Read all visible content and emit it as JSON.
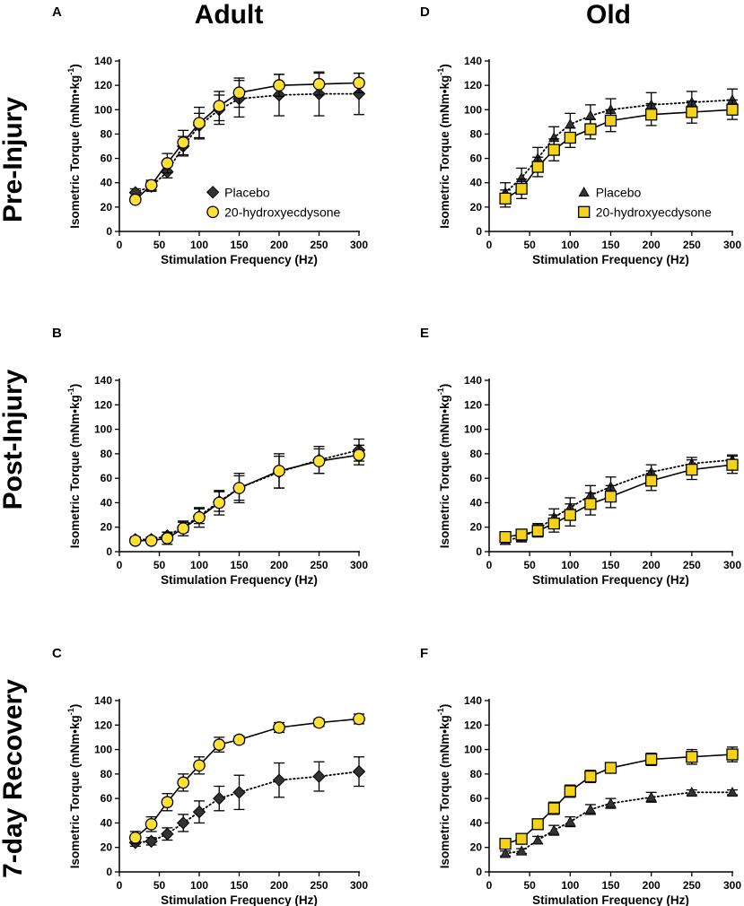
{
  "figure": {
    "columns": [
      "Adult",
      "Old"
    ],
    "rows": [
      "Pre-Injury",
      "Post-Injury",
      "7-day Recovery"
    ],
    "ylabel_prefix": "Isometric Torque (mNm•kg",
    "ylabel_exponent": "-1",
    "ylabel_suffix": ")"
  },
  "colors": {
    "placebo": "#333333",
    "treatment": "#FFE033",
    "treatment_old": "#F5D21A",
    "stroke": "#000000"
  },
  "chart_data": [
    {
      "panel": "A",
      "type": "line",
      "column": "Adult",
      "row": "Pre-Injury",
      "title": "",
      "xlabel": "Stimulation Frequency (Hz)",
      "ylabel": "Isometric Torque (mNm•kg-1)",
      "x": [
        20,
        40,
        60,
        80,
        100,
        125,
        150,
        200,
        250,
        300
      ],
      "xlim": [
        0,
        300
      ],
      "xticks": [
        0,
        50,
        100,
        150,
        200,
        250,
        300
      ],
      "ylim": [
        0,
        140
      ],
      "yticks": [
        0,
        20,
        40,
        60,
        80,
        100,
        120,
        140
      ],
      "legend": true,
      "legend_placement": "lower-right",
      "series": [
        {
          "name": "Placebo",
          "marker": "diamond",
          "line": "dotted",
          "values": [
            32,
            37,
            49,
            70,
            87,
            100,
            109,
            112,
            113,
            113
          ],
          "errors": [
            3,
            4,
            5,
            8,
            10,
            12,
            15,
            17,
            18,
            17
          ]
        },
        {
          "name": "20-hydroxyecdysone",
          "marker": "circle",
          "line": "solid",
          "values": [
            26,
            38,
            56,
            73,
            89,
            103,
            114,
            120,
            121,
            122
          ],
          "errors": [
            2,
            4,
            8,
            10,
            13,
            12,
            12,
            9,
            9,
            8
          ]
        }
      ]
    },
    {
      "panel": "D",
      "type": "line",
      "column": "Old",
      "row": "Pre-Injury",
      "title": "",
      "xlabel": "Stimulation Frequency (Hz)",
      "ylabel": "Isometric Torque (mNm•kg-1)",
      "x": [
        20,
        40,
        60,
        80,
        100,
        125,
        150,
        200,
        250,
        300
      ],
      "xlim": [
        0,
        300
      ],
      "xticks": [
        0,
        50,
        100,
        150,
        200,
        250,
        300
      ],
      "ylim": [
        0,
        140
      ],
      "yticks": [
        0,
        20,
        40,
        60,
        80,
        100,
        120,
        140
      ],
      "legend": true,
      "legend_placement": "lower-right",
      "series": [
        {
          "name": "Placebo",
          "marker": "triangle",
          "line": "dotted",
          "values": [
            32,
            44,
            60,
            77,
            88,
            95,
            100,
            104,
            106,
            108
          ],
          "errors": [
            8,
            8,
            9,
            9,
            9,
            9,
            9,
            10,
            9,
            9
          ]
        },
        {
          "name": "20-hydroxyecdysone",
          "marker": "square",
          "line": "solid",
          "values": [
            27,
            35,
            53,
            67,
            77,
            84,
            91,
            96,
            98,
            100
          ],
          "errors": [
            7,
            8,
            8,
            9,
            8,
            8,
            9,
            9,
            9,
            8
          ]
        }
      ]
    },
    {
      "panel": "B",
      "type": "line",
      "column": "Adult",
      "row": "Post-Injury",
      "title": "",
      "xlabel": "Stimulation Frequency (Hz)",
      "ylabel": "Isometric Torque (mNm•kg-1)",
      "x": [
        20,
        40,
        60,
        80,
        100,
        125,
        150,
        200,
        250,
        300
      ],
      "xlim": [
        0,
        300
      ],
      "xticks": [
        0,
        50,
        100,
        150,
        200,
        250,
        300
      ],
      "ylim": [
        0,
        140
      ],
      "yticks": [
        0,
        20,
        40,
        60,
        80,
        100,
        120,
        140
      ],
      "legend": false,
      "series": [
        {
          "name": "Placebo",
          "marker": "diamond",
          "line": "dotted",
          "values": [
            10,
            10,
            13,
            20,
            29,
            41,
            52,
            65,
            75,
            83
          ],
          "errors": [
            2,
            2,
            3,
            4,
            6,
            8,
            10,
            13,
            11,
            9
          ]
        },
        {
          "name": "20-hydroxyecdysone",
          "marker": "circle",
          "line": "solid",
          "values": [
            9,
            9,
            11,
            19,
            28,
            40,
            52,
            66,
            74,
            79
          ],
          "errors": [
            2,
            2,
            5,
            6,
            8,
            10,
            12,
            14,
            10,
            8
          ]
        }
      ]
    },
    {
      "panel": "E",
      "type": "line",
      "column": "Old",
      "row": "Post-Injury",
      "title": "",
      "xlabel": "Stimulation Frequency (Hz)",
      "ylabel": "Isometric Torque (mNm•kg-1)",
      "x": [
        20,
        40,
        60,
        80,
        100,
        125,
        150,
        200,
        250,
        300
      ],
      "xlim": [
        0,
        300
      ],
      "xticks": [
        0,
        50,
        100,
        150,
        200,
        250,
        300
      ],
      "ylim": [
        0,
        140
      ],
      "yticks": [
        0,
        20,
        40,
        60,
        80,
        100,
        120,
        140
      ],
      "legend": false,
      "series": [
        {
          "name": "Placebo",
          "marker": "triangle",
          "line": "dotted",
          "values": [
            9,
            12,
            18,
            28,
            36,
            46,
            53,
            65,
            72,
            75
          ],
          "errors": [
            3,
            4,
            5,
            7,
            8,
            8,
            8,
            6,
            5,
            4
          ]
        },
        {
          "name": "20-hydroxyecdysone",
          "marker": "square",
          "line": "solid",
          "values": [
            12,
            14,
            17,
            23,
            30,
            39,
            45,
            58,
            67,
            71
          ],
          "errors": [
            4,
            4,
            5,
            7,
            9,
            9,
            9,
            8,
            8,
            7
          ]
        }
      ]
    },
    {
      "panel": "C",
      "type": "line",
      "column": "Adult",
      "row": "7-day Recovery",
      "title": "",
      "xlabel": "Stimulation Frequency (Hz)",
      "ylabel": "Isometric Torque (mNm•kg-1)",
      "x": [
        20,
        40,
        60,
        80,
        100,
        125,
        150,
        200,
        250,
        300
      ],
      "xlim": [
        0,
        300
      ],
      "xticks": [
        0,
        50,
        100,
        150,
        200,
        250,
        300
      ],
      "ylim": [
        0,
        140
      ],
      "yticks": [
        0,
        20,
        40,
        60,
        80,
        100,
        120,
        140
      ],
      "legend": false,
      "series": [
        {
          "name": "Placebo",
          "marker": "diamond",
          "line": "dotted",
          "values": [
            24,
            25,
            31,
            40,
            49,
            60,
            65,
            75,
            78,
            82
          ],
          "errors": [
            3,
            3,
            5,
            7,
            9,
            10,
            14,
            14,
            12,
            12
          ]
        },
        {
          "name": "20-hydroxyecdysone",
          "marker": "circle",
          "line": "solid",
          "values": [
            28,
            39,
            57,
            73,
            87,
            104,
            108,
            118,
            122,
            125
          ],
          "errors": [
            5,
            6,
            7,
            7,
            7,
            6,
            3,
            4,
            3,
            4
          ]
        }
      ]
    },
    {
      "panel": "F",
      "type": "line",
      "column": "Old",
      "row": "7-day Recovery",
      "title": "",
      "xlabel": "Stimulation Frequency (Hz)",
      "ylabel": "Isometric Torque (mNm•kg-1)",
      "x": [
        20,
        40,
        60,
        80,
        100,
        125,
        150,
        200,
        250,
        300
      ],
      "xlim": [
        0,
        300
      ],
      "xticks": [
        0,
        50,
        100,
        150,
        200,
        250,
        300
      ],
      "ylim": [
        0,
        140
      ],
      "yticks": [
        0,
        20,
        40,
        60,
        80,
        100,
        120,
        140
      ],
      "legend": false,
      "series": [
        {
          "name": "Placebo",
          "marker": "triangle",
          "line": "dotted",
          "values": [
            15,
            17,
            26,
            34,
            41,
            51,
            56,
            61,
            65,
            65
          ],
          "errors": [
            2,
            2,
            3,
            4,
            4,
            4,
            4,
            4,
            2,
            2
          ]
        },
        {
          "name": "20-hydroxyecdysone",
          "marker": "square",
          "line": "solid",
          "values": [
            23,
            27,
            39,
            52,
            66,
            78,
            85,
            92,
            94,
            96
          ],
          "errors": [
            3,
            3,
            4,
            5,
            5,
            5,
            4,
            5,
            6,
            6
          ]
        }
      ]
    }
  ]
}
